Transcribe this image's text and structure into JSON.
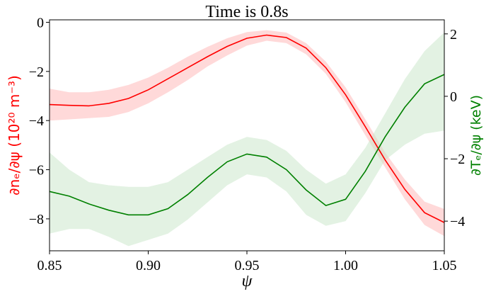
{
  "chart_data": {
    "type": "line",
    "title": "Time is 0.8s",
    "xlabel": "ψ",
    "xlim": [
      0.85,
      1.05
    ],
    "xticks": [
      0.85,
      0.9,
      0.95,
      1.0,
      1.05
    ],
    "x_tick_labels": [
      "0.85",
      "0.90",
      "0.95",
      "1.00",
      "1.05"
    ],
    "left_axis": {
      "label": "∂nₑ/∂ψ (10²⁰ m⁻³)",
      "color": "#ff0000",
      "ylim": [
        -9.3,
        0.1
      ],
      "ticks": [
        0,
        -2,
        -4,
        -6,
        -8
      ],
      "tick_labels": [
        "0",
        "−2",
        "−4",
        "−6",
        "−8"
      ]
    },
    "right_axis": {
      "label": "∂Tₑ/∂ψ (keV)",
      "color": "#008000",
      "ylim": [
        -4.95,
        2.45
      ],
      "ticks": [
        2,
        0,
        -2,
        -4
      ],
      "tick_labels": [
        "2",
        "0",
        "−2",
        "−4"
      ]
    },
    "x": [
      0.85,
      0.86,
      0.87,
      0.88,
      0.89,
      0.9,
      0.91,
      0.92,
      0.93,
      0.94,
      0.95,
      0.96,
      0.97,
      0.98,
      0.99,
      1.0,
      1.01,
      1.02,
      1.03,
      1.04,
      1.05
    ],
    "series": [
      {
        "axis": "left",
        "color": "#ff0000",
        "band_color": "#ffb3b3",
        "values": [
          -3.35,
          -3.38,
          -3.4,
          -3.3,
          -3.1,
          -2.75,
          -2.3,
          -1.85,
          -1.4,
          -0.98,
          -0.65,
          -0.52,
          -0.62,
          -1.05,
          -1.85,
          -2.95,
          -4.25,
          -5.6,
          -6.8,
          -7.75,
          -8.15
        ],
        "upper": [
          -2.7,
          -2.85,
          -2.85,
          -2.75,
          -2.55,
          -2.25,
          -1.85,
          -1.4,
          -1.0,
          -0.65,
          -0.4,
          -0.32,
          -0.42,
          -0.85,
          -1.6,
          -2.65,
          -3.95,
          -5.3,
          -6.4,
          -7.3,
          -7.6
        ],
        "lower": [
          -4.0,
          -3.95,
          -3.9,
          -3.85,
          -3.65,
          -3.3,
          -2.85,
          -2.35,
          -1.8,
          -1.35,
          -0.95,
          -0.75,
          -0.85,
          -1.3,
          -2.1,
          -3.25,
          -4.6,
          -5.9,
          -7.2,
          -8.25,
          -8.7
        ]
      },
      {
        "axis": "right",
        "color": "#008000",
        "band_color": "#c8e6c8",
        "values": [
          -3.05,
          -3.2,
          -3.45,
          -3.65,
          -3.8,
          -3.8,
          -3.6,
          -3.15,
          -2.6,
          -2.1,
          -1.85,
          -1.95,
          -2.35,
          -3.0,
          -3.5,
          -3.3,
          -2.4,
          -1.3,
          -0.35,
          0.4,
          0.7
        ],
        "upper": [
          -1.8,
          -2.35,
          -2.75,
          -2.85,
          -2.9,
          -2.9,
          -2.75,
          -2.35,
          -1.95,
          -1.55,
          -1.3,
          -1.4,
          -1.75,
          -2.35,
          -2.8,
          -2.5,
          -1.65,
          -0.55,
          0.55,
          1.45,
          2.05
        ],
        "lower": [
          -4.4,
          -4.25,
          -4.25,
          -4.5,
          -4.8,
          -4.6,
          -4.4,
          -3.95,
          -3.4,
          -2.85,
          -2.5,
          -2.6,
          -3.05,
          -3.8,
          -4.15,
          -4.0,
          -3.1,
          -2.05,
          -1.55,
          -1.2,
          -1.1
        ]
      }
    ]
  }
}
